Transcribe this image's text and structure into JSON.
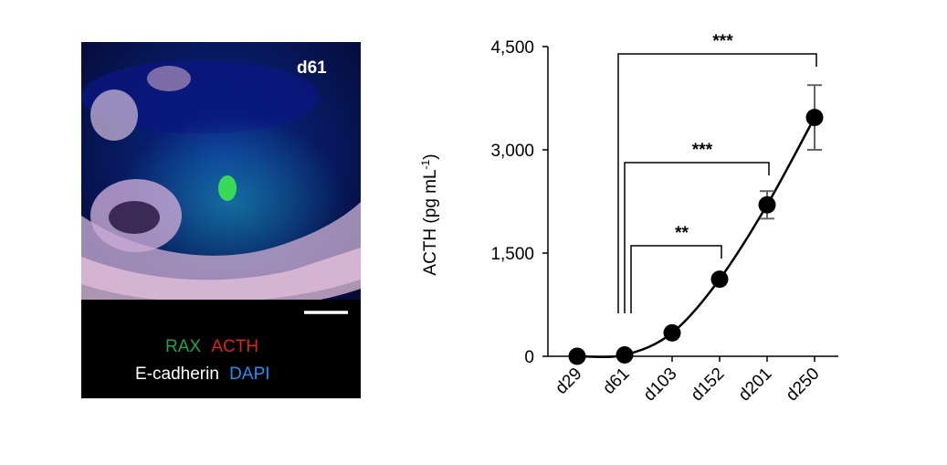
{
  "micrograph": {
    "day_label": "d61",
    "legend_line1": [
      {
        "text": "RAX",
        "color": "#1fa34a"
      },
      {
        "text": "ACTH",
        "color": "#e0201b"
      }
    ],
    "legend_line2": [
      {
        "text": "E-cadherin",
        "color": "#ffffff"
      },
      {
        "text": "DAPI",
        "color": "#1e8ff0"
      }
    ],
    "has_scale_bar": true
  },
  "chart_data": {
    "type": "line",
    "categories": [
      "d29",
      "d61",
      "d103",
      "d152",
      "d201",
      "d250"
    ],
    "values": [
      0,
      20,
      340,
      1120,
      2200,
      3470
    ],
    "errors": [
      0,
      0,
      0,
      0,
      200,
      470
    ],
    "ylabel": "ACTH (pg mL",
    "ylabel_sup": "-1",
    "ylabel_close": ")",
    "ylim": [
      0,
      4500
    ],
    "yticks": [
      0,
      1500,
      3000,
      4500
    ],
    "ytick_labels": [
      "0",
      "1,500",
      "3,000",
      "4,500"
    ],
    "grid": false,
    "significance": [
      {
        "from": "d61",
        "to": "d250",
        "label": "***"
      },
      {
        "from": "d61",
        "to": "d201",
        "label": "***"
      },
      {
        "from": "d61",
        "to": "d152",
        "label": "**"
      }
    ]
  }
}
